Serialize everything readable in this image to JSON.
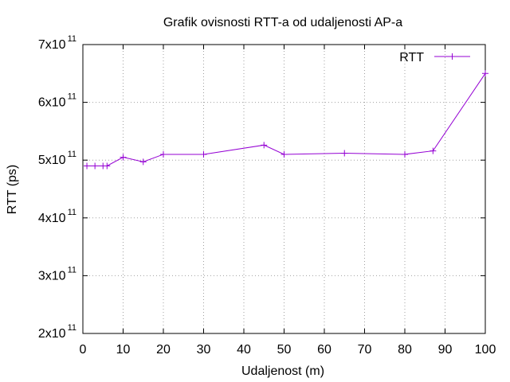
{
  "chart_data": {
    "type": "line",
    "title": "Grafik ovisnosti RTT-a od udaljenosti AP-a",
    "xlabel": "Udaljenost (m)",
    "ylabel": "RTT (ps)",
    "xlim": [
      0,
      100
    ],
    "ylim": [
      200000000000,
      700000000000
    ],
    "x_ticks": [
      0,
      10,
      20,
      30,
      40,
      50,
      60,
      70,
      80,
      90,
      100
    ],
    "x_tick_labels": [
      "0",
      "10",
      "20",
      "30",
      "40",
      "50",
      "60",
      "70",
      "80",
      "90",
      "100"
    ],
    "y_ticks": [
      200000000000,
      300000000000,
      400000000000,
      500000000000,
      600000000000,
      700000000000
    ],
    "y_tick_labels": [
      {
        "mantissa": "2x10",
        "exponent": "11"
      },
      {
        "mantissa": "3x10",
        "exponent": "11"
      },
      {
        "mantissa": "4x10",
        "exponent": "11"
      },
      {
        "mantissa": "5x10",
        "exponent": "11"
      },
      {
        "mantissa": "6x10",
        "exponent": "11"
      },
      {
        "mantissa": "7x10",
        "exponent": "11"
      }
    ],
    "grid": true,
    "legend_position": "top-right",
    "series": [
      {
        "name": "RTT",
        "color": "#9400d3",
        "x": [
          1,
          3,
          5,
          6,
          10,
          15,
          20,
          30,
          45,
          50,
          65,
          80,
          87,
          100
        ],
        "y": [
          490000000000,
          490000000000,
          490000000000,
          490000000000,
          505000000000,
          497000000000,
          510000000000,
          510000000000,
          526000000000,
          510000000000,
          512000000000,
          510000000000,
          516000000000,
          650000000000
        ]
      }
    ]
  }
}
